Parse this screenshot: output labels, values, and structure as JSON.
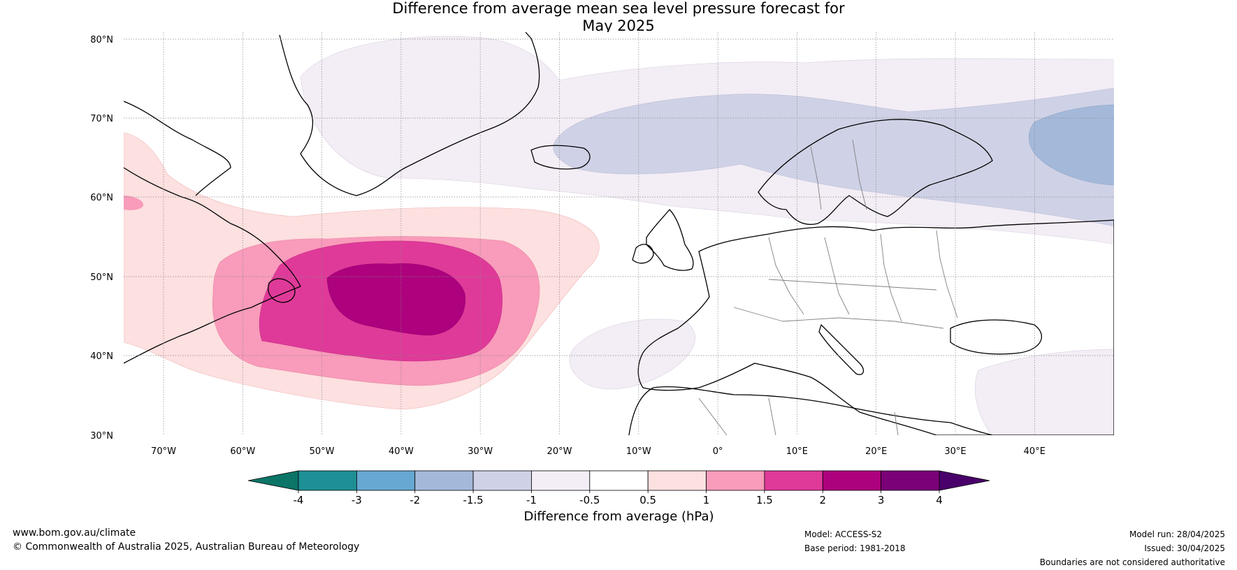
{
  "title_line1": "Difference from average mean sea level pressure forecast for",
  "title_line2": "May 2025",
  "map": {
    "lat_labels": [
      "80°N",
      "70°N",
      "60°N",
      "50°N",
      "40°N",
      "30°N"
    ],
    "lon_labels": [
      "70°W",
      "60°W",
      "50°W",
      "40°W",
      "30°W",
      "20°W",
      "10°W",
      "0°",
      "10°E",
      "20°E",
      "30°E",
      "40°E"
    ],
    "region_labels": []
  },
  "colorbar": {
    "ticks": [
      "-4",
      "-3",
      "-2",
      "-1.5",
      "-1",
      "-0.5",
      "0.5",
      "1",
      "1.5",
      "2",
      "3",
      "4"
    ],
    "colors": [
      "#1e9095",
      "#66a8d2",
      "#a4b9da",
      "#cfd2e6",
      "#f3edf5",
      "#ffffff",
      "#fde0e0",
      "#f99bbb",
      "#df3a99",
      "#ad017d",
      "#7a0177"
    ],
    "under_color": "#0c7568",
    "over_color": "#49006a",
    "label": "Difference from average (hPa)"
  },
  "footer": {
    "url": "www.bom.gov.au/climate",
    "copyright": "© Commonwealth of Australia 2025, Australian Bureau of Meteorology",
    "model": "Model: ACCESS-S2",
    "base_period": "Base period: 1981-2018",
    "model_run": "Model run: 28/04/2025",
    "issued": "Issued: 30/04/2025",
    "disclaimer": "Boundaries are not considered authoritative"
  }
}
